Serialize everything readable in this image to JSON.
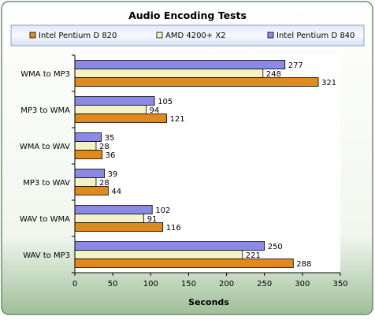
{
  "chart_data": {
    "type": "bar",
    "orientation": "horizontal",
    "title": "Audio Encoding Tests",
    "xlabel": "Seconds",
    "ylabel": "",
    "xlim": [
      0,
      350
    ],
    "xticks": [
      0,
      50,
      100,
      150,
      200,
      250,
      300,
      350
    ],
    "grid": false,
    "legend": "top",
    "categories": [
      "WMA to MP3",
      "MP3 to WMA",
      "WMA to WAV",
      "MP3 to WAV",
      "WAV to WMA",
      "WAV to MP3"
    ],
    "series": [
      {
        "name": "Intel Pentium D 840",
        "color": "#8a8ae6",
        "values": [
          277,
          105,
          35,
          39,
          102,
          250
        ]
      },
      {
        "name": "AMD 4200+ X2",
        "color": "#f2f2c2",
        "values": [
          248,
          94,
          28,
          28,
          91,
          221
        ]
      },
      {
        "name": "Intel Pentium D 820",
        "color": "#e08a1e",
        "values": [
          321,
          121,
          36,
          44,
          116,
          288
        ]
      }
    ],
    "legend_order": [
      "Intel Pentium D 820",
      "AMD 4200+ X2",
      "Intel Pentium D 840"
    ]
  }
}
